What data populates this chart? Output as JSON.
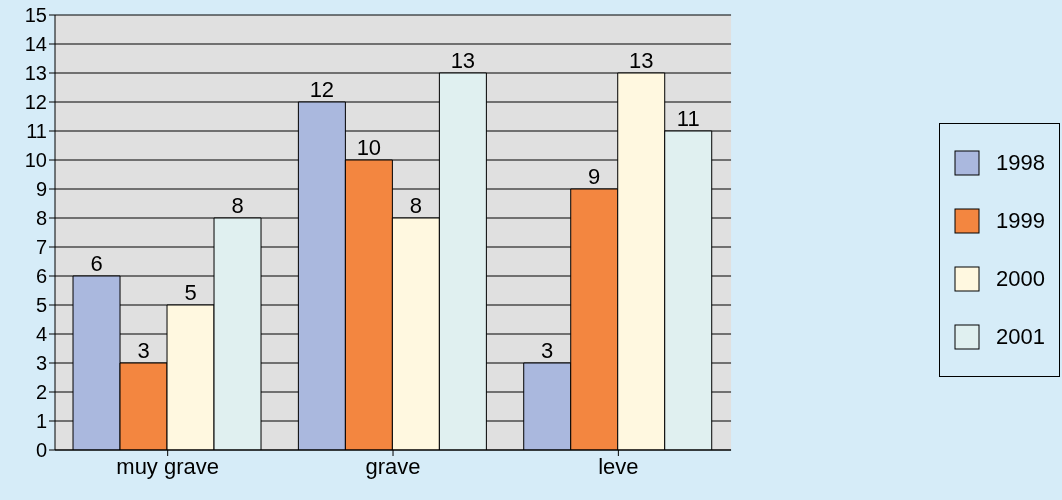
{
  "chart_data": {
    "type": "bar",
    "categories": [
      "muy grave",
      "grave",
      "leve"
    ],
    "series": [
      {
        "name": "1998",
        "color": "#aab8de",
        "values": [
          6,
          12,
          3
        ]
      },
      {
        "name": "1999",
        "color": "#f38640",
        "values": [
          3,
          10,
          9
        ]
      },
      {
        "name": "2000",
        "color": "#fff8e0",
        "values": [
          5,
          8,
          13
        ]
      },
      {
        "name": "2001",
        "color": "#e0f0f0",
        "values": [
          8,
          13,
          11
        ]
      }
    ],
    "ylim": [
      0,
      15
    ],
    "yticks": [
      0,
      1,
      2,
      3,
      4,
      5,
      6,
      7,
      8,
      9,
      10,
      11,
      12,
      13,
      14,
      15
    ],
    "grid": "y",
    "legend": "right",
    "data_labels": true
  }
}
